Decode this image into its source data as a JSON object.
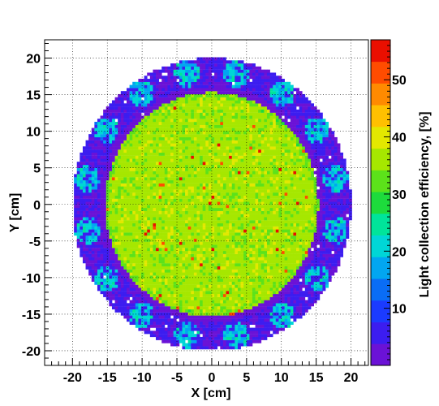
{
  "chart_data": {
    "type": "heatmap",
    "xlabel": "X [cm]",
    "ylabel": "Y [cm]",
    "zlabel": "Light collection efficiency, [%]",
    "xlim": [
      -24,
      22.5
    ],
    "ylim": [
      -22,
      22.5
    ],
    "zlim": [
      0,
      57
    ],
    "x_ticks": [
      -20,
      -15,
      -10,
      -5,
      0,
      5,
      10,
      15,
      20
    ],
    "y_ticks": [
      -20,
      -15,
      -10,
      -5,
      0,
      5,
      10,
      15,
      20
    ],
    "z_ticks": [
      10,
      20,
      30,
      40,
      50
    ],
    "grid": true,
    "regions": [
      {
        "shape": "disk",
        "center": [
          0,
          0
        ],
        "radius": 15.3,
        "typical_value": 36,
        "range": [
          28,
          55
        ]
      },
      {
        "shape": "annulus",
        "center": [
          0,
          0
        ],
        "inner_radius": 15.3,
        "outer_radius": 20,
        "typical_value": 6,
        "range": [
          0,
          25
        ]
      }
    ],
    "hotspots": {
      "count": 16,
      "ring_radius": 18.2,
      "radius": 1.8,
      "typical_value": 20
    },
    "color_scale": [
      "#6b12d6",
      "#3c1df0",
      "#1b3bff",
      "#0a6df5",
      "#02a6f0",
      "#00d6d6",
      "#00e49a",
      "#1ddb3c",
      "#5ce21a",
      "#a6e700",
      "#e3e800",
      "#ffc000",
      "#ff8a00",
      "#ff4c00",
      "#ea0f00"
    ]
  }
}
